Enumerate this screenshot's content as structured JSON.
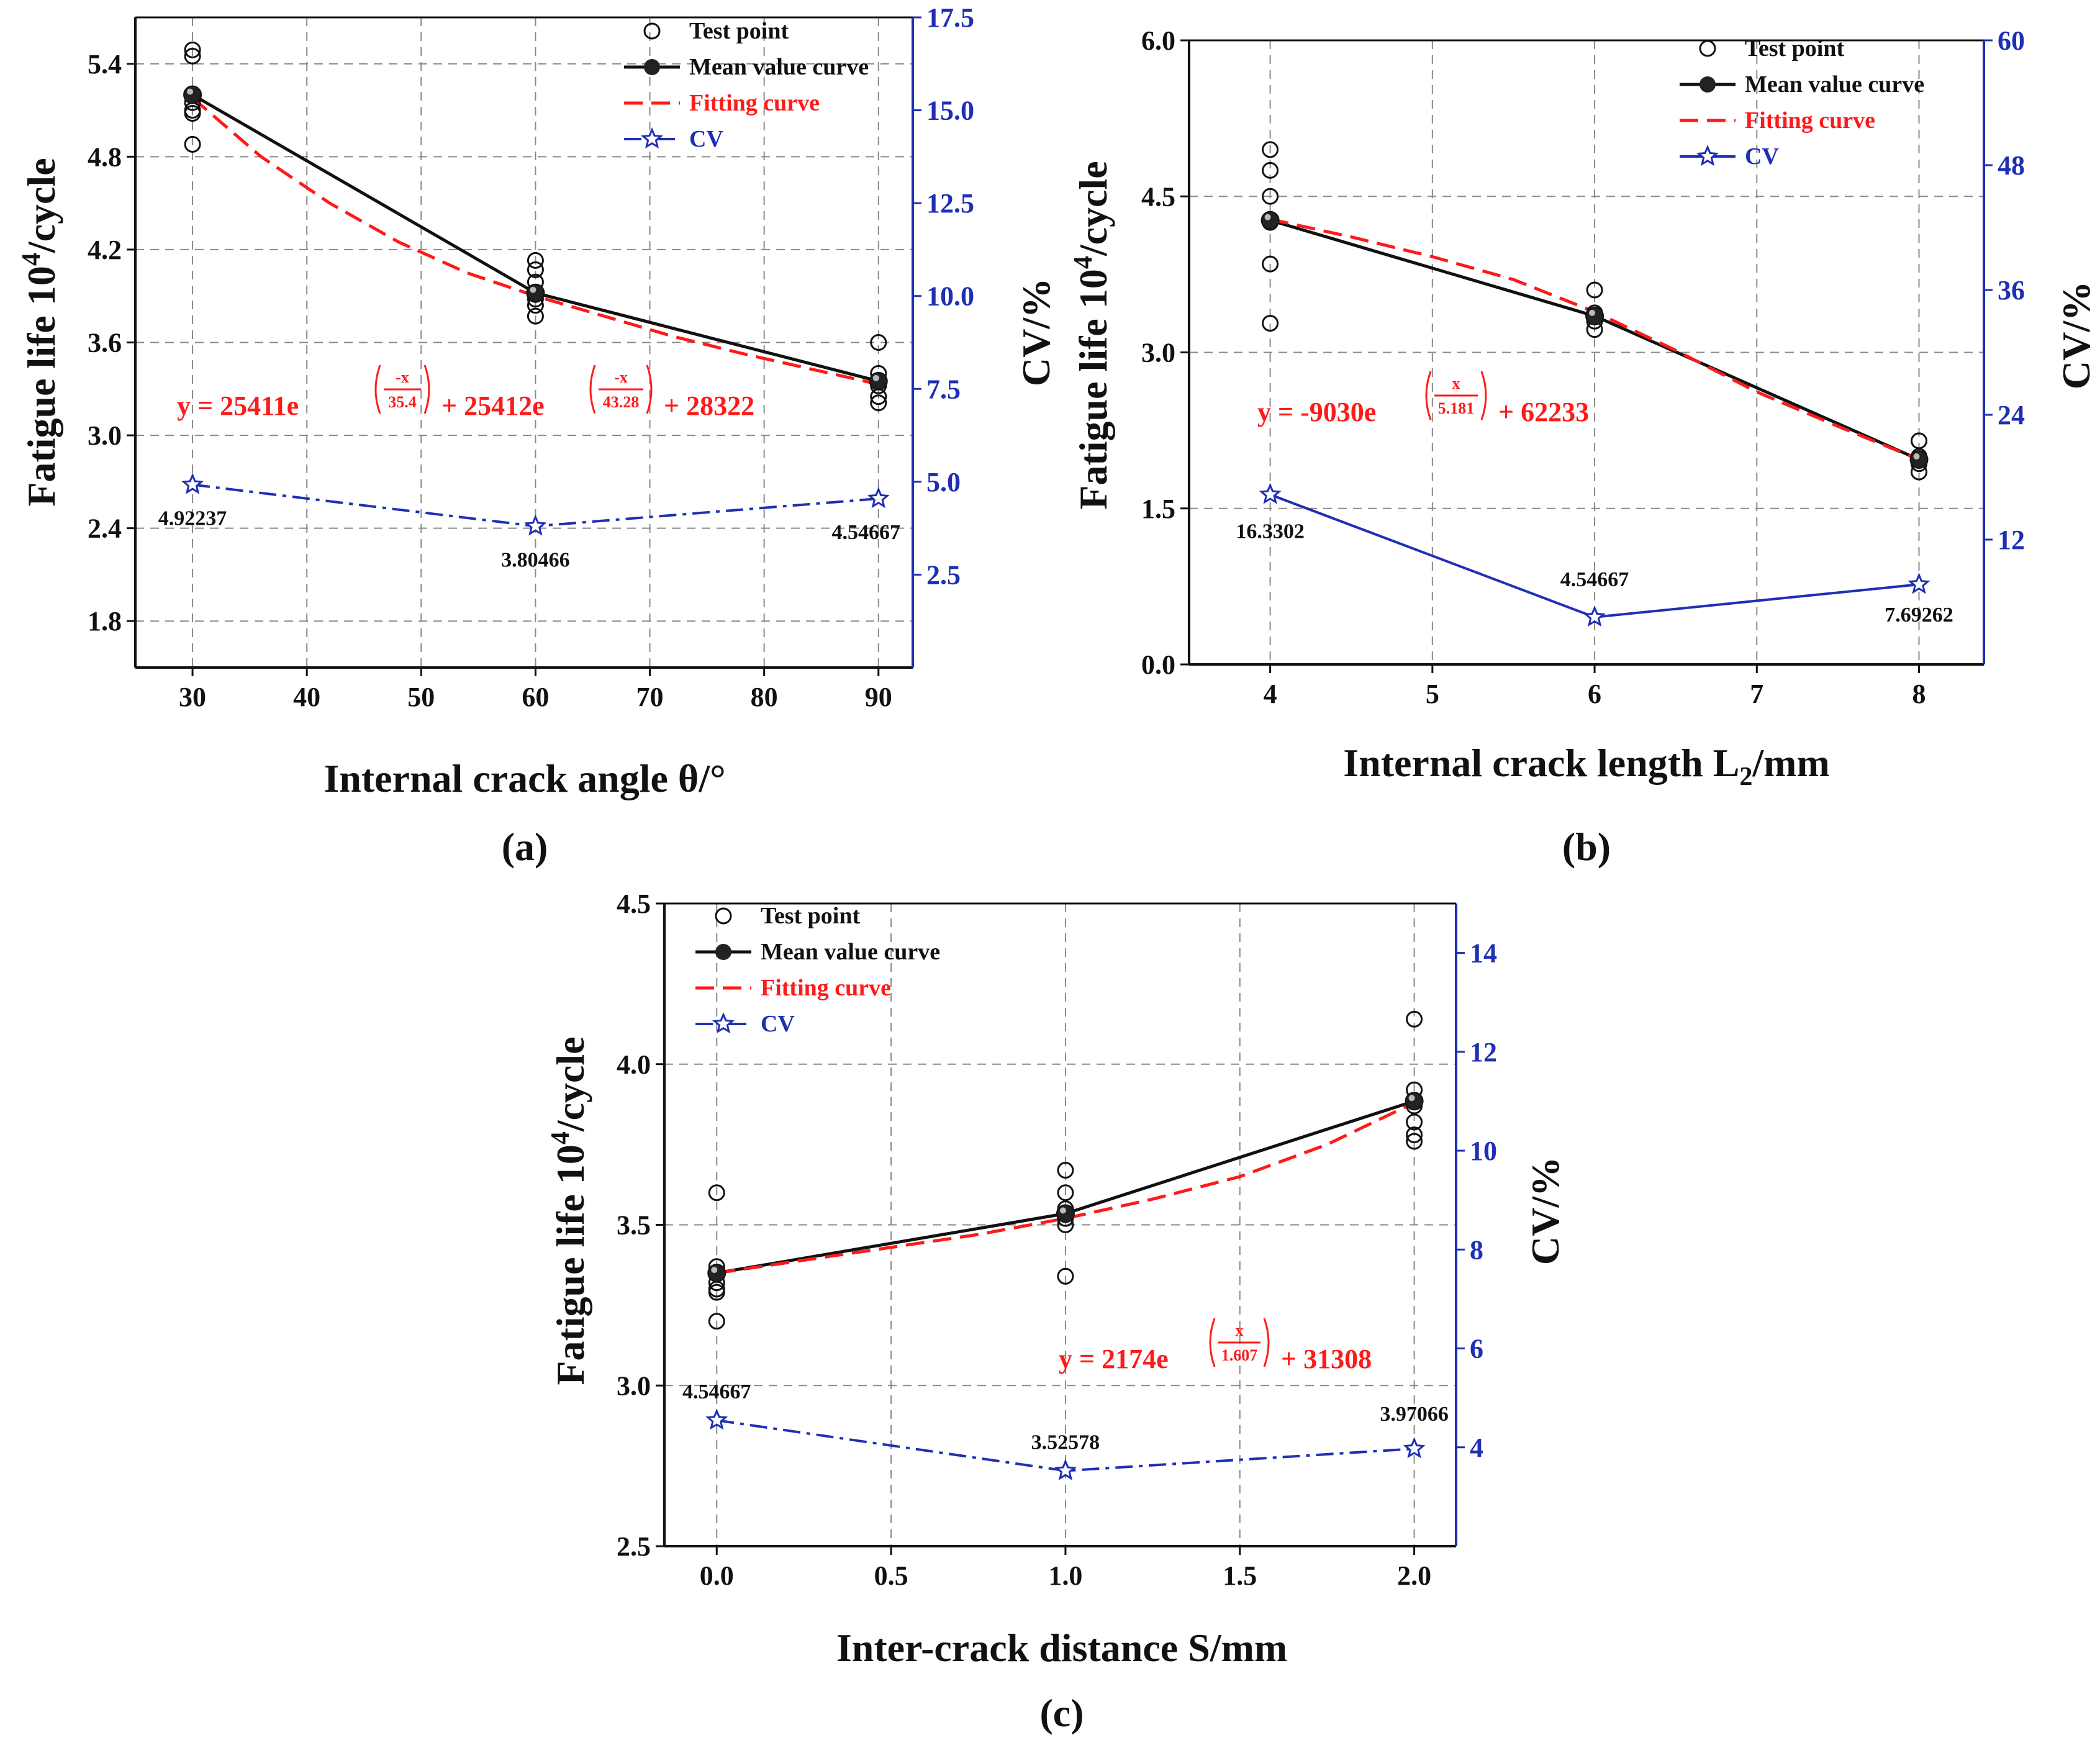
{
  "chart_data": [
    {
      "type": "line",
      "panel_label": "(a)",
      "xlabel": "Internal crack angle θ/°",
      "ylabel_prefix": "Fatigue life 10",
      "ylabel_sup": "4",
      "ylabel_suffix": "/cycle",
      "y2label": "CV/%",
      "xlim": [
        25,
        93
      ],
      "ylim": [
        1.5,
        5.7
      ],
      "y2lim": [
        0,
        17.5
      ],
      "xticks": [
        30,
        40,
        50,
        60,
        70,
        80,
        90
      ],
      "xtick_labels": [
        "30",
        "40",
        "50",
        "60",
        "70",
        "80",
        "90"
      ],
      "yticks": [
        1.8,
        2.4,
        3.0,
        3.6,
        4.2,
        4.8,
        5.4
      ],
      "ytick_labels": [
        "1.8",
        "2.4",
        "3.0",
        "3.6",
        "4.2",
        "4.8",
        "5.4"
      ],
      "y2ticks": [
        2.5,
        5.0,
        7.5,
        10.0,
        12.5,
        15.0,
        17.5
      ],
      "y2tick_labels": [
        "2.5",
        "5.0",
        "7.5",
        "10.0",
        "12.5",
        "15.0",
        "17.5"
      ],
      "legend": {
        "test": "Test point",
        "mean": "Mean value curve",
        "fit": "Fitting curve",
        "cv": "CV"
      },
      "cv_dash": "dashdot",
      "test_points": [
        {
          "x": 30,
          "y": [
            5.49,
            5.45,
            5.15,
            5.1,
            5.08,
            4.88
          ]
        },
        {
          "x": 60,
          "y": [
            4.13,
            4.07,
            3.99,
            3.91,
            3.88,
            3.84,
            3.77
          ]
        },
        {
          "x": 90,
          "y": [
            3.6,
            3.4,
            3.32,
            3.25,
            3.21
          ]
        }
      ],
      "mean": {
        "x": [
          30,
          60,
          90
        ],
        "y": [
          5.2,
          3.92,
          3.35
        ]
      },
      "fit_points": [
        [
          30,
          5.18
        ],
        [
          36,
          4.8
        ],
        [
          42,
          4.5
        ],
        [
          48,
          4.25
        ],
        [
          54,
          4.05
        ],
        [
          60,
          3.9
        ],
        [
          66,
          3.77
        ],
        [
          72,
          3.64
        ],
        [
          78,
          3.53
        ],
        [
          84,
          3.43
        ],
        [
          90,
          3.33
        ]
      ],
      "cv": {
        "x": [
          30,
          60,
          90
        ],
        "y": [
          4.92237,
          3.80466,
          4.54667
        ],
        "labels": [
          "4.92237",
          "3.80466",
          "4.54667"
        ]
      },
      "equation": {
        "prefix": "y = 25411e",
        "e1_num": "-x",
        "e1_den": "35.4",
        "mid": " + 25412e",
        "e2_num": "-x",
        "e2_den": "43.28",
        "tail": " + 28322"
      }
    },
    {
      "type": "line",
      "panel_label": "(b)",
      "xlabel_main": "Internal crack length L",
      "xlabel_sub": "2",
      "xlabel_tail": "/mm",
      "ylabel_prefix": "Fatigue life 10",
      "ylabel_sup": "4",
      "ylabel_suffix": "/cycle",
      "y2label": "CV/%",
      "xlim": [
        3.5,
        8.4
      ],
      "ylim": [
        0,
        6
      ],
      "y2lim": [
        0,
        60
      ],
      "xticks": [
        4,
        5,
        6,
        7,
        8
      ],
      "xtick_labels": [
        "4",
        "5",
        "6",
        "7",
        "8"
      ],
      "yticks": [
        0,
        1.5,
        3.0,
        4.5,
        6.0
      ],
      "ytick_labels": [
        "0.0",
        "1.5",
        "3.0",
        "4.5",
        "6.0"
      ],
      "y2ticks": [
        12,
        24,
        36,
        48,
        60
      ],
      "y2tick_labels": [
        "12",
        "24",
        "36",
        "48",
        "60"
      ],
      "legend": {
        "test": "Test point",
        "mean": "Mean value curve",
        "fit": "Fitting curve",
        "cv": "CV"
      },
      "cv_dash": "solid",
      "test_points": [
        {
          "x": 4,
          "y": [
            4.95,
            4.75,
            4.5,
            4.25,
            3.85,
            3.28
          ]
        },
        {
          "x": 6,
          "y": [
            3.6,
            3.38,
            3.3,
            3.22
          ]
        },
        {
          "x": 8,
          "y": [
            2.15,
            2.0,
            1.93,
            1.85
          ]
        }
      ],
      "mean": {
        "x": [
          4,
          6,
          8
        ],
        "y": [
          4.27,
          3.35,
          1.97
        ]
      },
      "fit_points": [
        [
          4,
          4.28
        ],
        [
          4.5,
          4.11
        ],
        [
          5,
          3.92
        ],
        [
          5.5,
          3.7
        ],
        [
          6,
          3.39
        ],
        [
          6.5,
          3.02
        ],
        [
          7,
          2.62
        ],
        [
          7.5,
          2.29
        ],
        [
          8,
          1.97
        ]
      ],
      "cv": {
        "x": [
          4,
          6,
          8
        ],
        "y": [
          16.3302,
          4.54667,
          7.69262
        ],
        "labels": [
          "16.3302",
          "4.54667",
          "7.69262"
        ]
      },
      "equation": {
        "prefix": "y = -9030e",
        "e1_num": "x",
        "e1_den": "5.181",
        "tail": " + 62233"
      }
    },
    {
      "type": "line",
      "panel_label": "(c)",
      "xlabel": "Inter-crack distance S/mm",
      "ylabel_prefix": "Fatigue life 10",
      "ylabel_sup": "4",
      "ylabel_suffix": "/cycle",
      "y2label": "CV/%",
      "xlim": [
        -0.15,
        2.12
      ],
      "ylim": [
        2.5,
        4.5
      ],
      "y2lim": [
        2,
        15
      ],
      "xticks": [
        0,
        0.5,
        1.0,
        1.5,
        2.0
      ],
      "xtick_labels": [
        "0.0",
        "0.5",
        "1.0",
        "1.5",
        "2.0"
      ],
      "yticks": [
        2.5,
        3.0,
        3.5,
        4.0,
        4.5
      ],
      "ytick_labels": [
        "2.5",
        "3.0",
        "3.5",
        "4.0",
        "4.5"
      ],
      "y2ticks": [
        4,
        6,
        8,
        10,
        12,
        14
      ],
      "y2tick_labels": [
        "4",
        "6",
        "8",
        "10",
        "12",
        "14"
      ],
      "legend": {
        "test": "Test point",
        "mean": "Mean value curve",
        "fit": "Fitting curve",
        "cv": "CV"
      },
      "cv_dash": "dashdot",
      "test_points": [
        {
          "x": 0,
          "y": [
            3.6,
            3.37,
            3.32,
            3.3,
            3.29,
            3.2
          ]
        },
        {
          "x": 1,
          "y": [
            3.67,
            3.6,
            3.55,
            3.52,
            3.5,
            3.34
          ]
        },
        {
          "x": 2,
          "y": [
            4.14,
            3.92,
            3.87,
            3.82,
            3.78,
            3.76
          ]
        }
      ],
      "mean": {
        "x": [
          0,
          1,
          2
        ],
        "y": [
          3.35,
          3.535,
          3.885
        ]
      },
      "fit_points": [
        [
          0,
          3.35
        ],
        [
          0.25,
          3.39
        ],
        [
          0.5,
          3.43
        ],
        [
          0.75,
          3.47
        ],
        [
          1,
          3.52
        ],
        [
          1.25,
          3.58
        ],
        [
          1.5,
          3.65
        ],
        [
          1.75,
          3.75
        ],
        [
          2,
          3.88
        ]
      ],
      "cv": {
        "x": [
          0,
          1,
          2
        ],
        "y": [
          4.54667,
          3.52578,
          3.97066
        ],
        "labels": [
          "4.54667",
          "3.52578",
          "3.97066"
        ]
      },
      "equation": {
        "prefix": "y = 2174e",
        "e1_num": "x",
        "e1_den": "1.607",
        "tail": " + 31308"
      }
    }
  ]
}
